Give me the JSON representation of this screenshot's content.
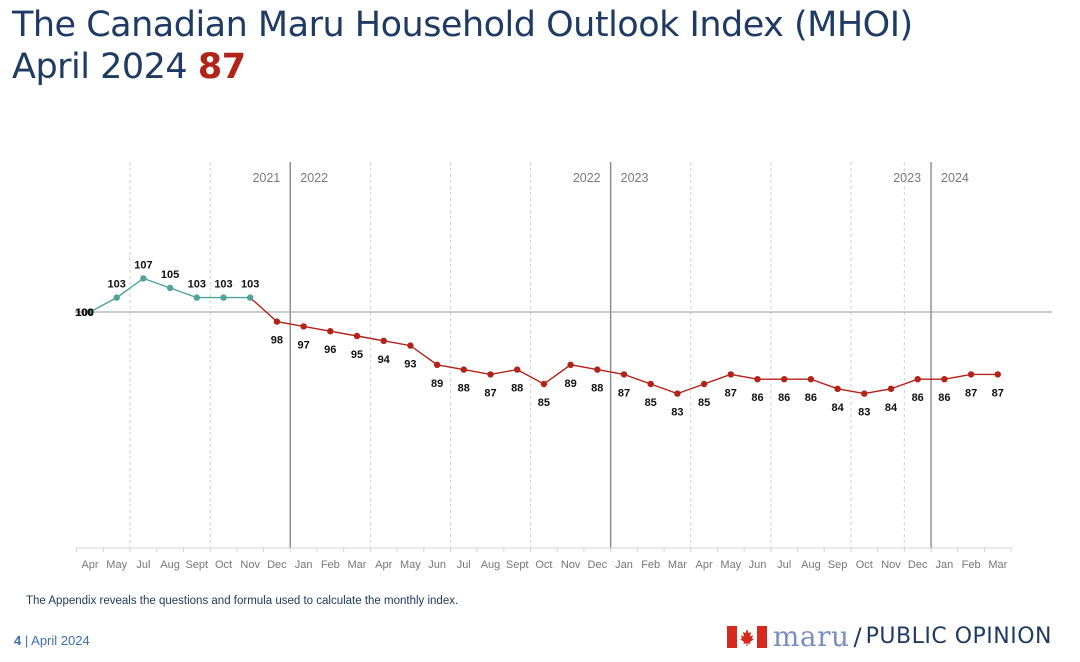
{
  "header": {
    "title": "The Canadian Maru Household Outlook Index (MHOI)",
    "subtitle_prefix": "April 2024",
    "subtitle_value": "87"
  },
  "footnote": "The Appendix reveals the questions and formula used to calculate the monthly index.",
  "footer": {
    "page_number": "4",
    "separator": "|",
    "date": "April 2024"
  },
  "logo": {
    "brand": "maru",
    "slash": "/",
    "tagline": "PUBLIC OPINION",
    "flag_icon": "canada-flag-icon"
  },
  "colors": {
    "title": "#1f3b64",
    "highlight": "#b2231a",
    "series_early": "#4fa396",
    "series_late": "#b2231a",
    "baseline": "#9a9a9a",
    "year_divider": "#8a8a8a",
    "gridline": "#cfcfcf",
    "tick_label": "#777777"
  },
  "chart_data": {
    "type": "line",
    "title": "",
    "xlabel": "",
    "ylabel": "",
    "baseline_value": 100,
    "baseline_label": "100",
    "ylim": [
      60,
      115
    ],
    "grid": "dashed vertical lines at quarter boundaries",
    "legend": "none",
    "x": [
      "Apr",
      "May",
      "Jul",
      "Aug",
      "Sept",
      "Oct",
      "Nov",
      "Dec",
      "Jan",
      "Feb",
      "Mar",
      "Apr",
      "May",
      "Jun",
      "Jul",
      "Aug",
      "Sept",
      "Oct",
      "Nov",
      "Dec",
      "Jan",
      "Feb",
      "Mar",
      "Apr",
      "May",
      "Jun",
      "Jul",
      "Aug",
      "Sep",
      "Oct",
      "Nov",
      "Dec",
      "Jan",
      "Feb",
      "Mar"
    ],
    "values": [
      100,
      103,
      107,
      105,
      103,
      103,
      103,
      98,
      97,
      96,
      95,
      94,
      93,
      89,
      88,
      87,
      88,
      85,
      89,
      88,
      87,
      85,
      83,
      85,
      87,
      86,
      86,
      86,
      84,
      83,
      84,
      86,
      86,
      87,
      87
    ],
    "series": [
      {
        "name": "",
        "color": "#4fa396",
        "from_index": 0,
        "to_index": 6
      },
      {
        "name": "",
        "color": "#b2231a",
        "from_index": 6,
        "to_index": 34
      }
    ],
    "year_dividers": [
      {
        "after_index": 7,
        "left_label": "2021",
        "right_label": "2022"
      },
      {
        "after_index": 19,
        "left_label": "2022",
        "right_label": "2023"
      },
      {
        "after_index": 31,
        "left_label": "2023",
        "right_label": "2024"
      }
    ],
    "quarter_gridlines_after_index": [
      1,
      4,
      10,
      13,
      16,
      22,
      25,
      28,
      30
    ]
  }
}
